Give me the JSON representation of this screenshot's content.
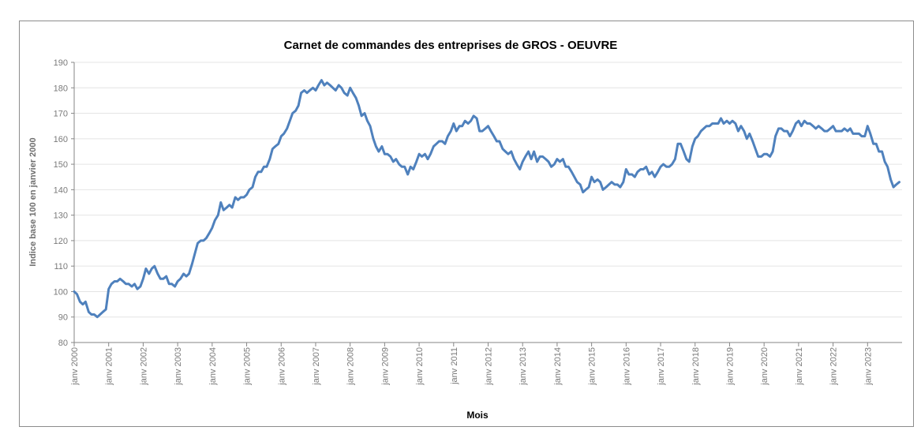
{
  "chart_data": {
    "type": "line",
    "title": "Carnet de commandes des entreprises de GROS - OEUVRE",
    "xlabel": "Mois",
    "ylabel": "Indice base 100 en janvier 2000",
    "ylim": [
      80,
      190
    ],
    "yticks": [
      80,
      90,
      100,
      110,
      120,
      130,
      140,
      150,
      160,
      170,
      180,
      190
    ],
    "xticks": [
      "janv 2000",
      "janv 2001",
      "janv 2002",
      "janv 2003",
      "janv 2004",
      "janv 2005",
      "janv 2006",
      "janv 2007",
      "janv 2008",
      "janv 2009",
      "janv 2010",
      "janv 2011",
      "janv 2012",
      "janv 2013",
      "janv 2014",
      "janv 2015",
      "janv 2016",
      "janv 2017",
      "janv 2018",
      "janv 2019",
      "janv 2020",
      "janv 2021",
      "janv 2022",
      "janv 2023"
    ],
    "grid": true,
    "legend": "none",
    "line_color": "#4f81bd",
    "x_start": "2000-01",
    "x_end": "2023-12",
    "series": [
      {
        "values": [
          [
            2000.0,
            100
          ],
          [
            2000.08,
            99
          ],
          [
            2000.17,
            96
          ],
          [
            2000.25,
            95
          ],
          [
            2000.33,
            96
          ],
          [
            2000.42,
            92
          ],
          [
            2000.5,
            91
          ],
          [
            2000.58,
            91
          ],
          [
            2000.67,
            90
          ],
          [
            2000.75,
            91
          ],
          [
            2000.83,
            92
          ],
          [
            2000.92,
            93
          ],
          [
            2001.0,
            101
          ],
          [
            2001.08,
            103
          ],
          [
            2001.17,
            104
          ],
          [
            2001.25,
            104
          ],
          [
            2001.33,
            105
          ],
          [
            2001.42,
            104
          ],
          [
            2001.5,
            103
          ],
          [
            2001.58,
            103
          ],
          [
            2001.67,
            102
          ],
          [
            2001.75,
            103
          ],
          [
            2001.83,
            101
          ],
          [
            2001.92,
            102
          ],
          [
            2002.0,
            105
          ],
          [
            2002.08,
            109
          ],
          [
            2002.17,
            107
          ],
          [
            2002.25,
            109
          ],
          [
            2002.33,
            110
          ],
          [
            2002.42,
            107
          ],
          [
            2002.5,
            105
          ],
          [
            2002.58,
            105
          ],
          [
            2002.67,
            106
          ],
          [
            2002.75,
            103
          ],
          [
            2002.83,
            103
          ],
          [
            2002.92,
            102
          ],
          [
            2003.0,
            104
          ],
          [
            2003.08,
            105
          ],
          [
            2003.17,
            107
          ],
          [
            2003.25,
            106
          ],
          [
            2003.33,
            107
          ],
          [
            2003.42,
            111
          ],
          [
            2003.5,
            115
          ],
          [
            2003.58,
            119
          ],
          [
            2003.67,
            120
          ],
          [
            2003.75,
            120
          ],
          [
            2003.83,
            121
          ],
          [
            2003.92,
            123
          ],
          [
            2004.0,
            125
          ],
          [
            2004.08,
            128
          ],
          [
            2004.17,
            130
          ],
          [
            2004.25,
            135
          ],
          [
            2004.33,
            132
          ],
          [
            2004.42,
            133
          ],
          [
            2004.5,
            134
          ],
          [
            2004.58,
            133
          ],
          [
            2004.67,
            137
          ],
          [
            2004.75,
            136
          ],
          [
            2004.83,
            137
          ],
          [
            2004.92,
            137
          ],
          [
            2005.0,
            138
          ],
          [
            2005.08,
            140
          ],
          [
            2005.17,
            141
          ],
          [
            2005.25,
            145
          ],
          [
            2005.33,
            147
          ],
          [
            2005.42,
            147
          ],
          [
            2005.5,
            149
          ],
          [
            2005.58,
            149
          ],
          [
            2005.67,
            152
          ],
          [
            2005.75,
            156
          ],
          [
            2005.83,
            157
          ],
          [
            2005.92,
            158
          ],
          [
            2006.0,
            161
          ],
          [
            2006.08,
            162
          ],
          [
            2006.17,
            164
          ],
          [
            2006.25,
            167
          ],
          [
            2006.33,
            170
          ],
          [
            2006.42,
            171
          ],
          [
            2006.5,
            173
          ],
          [
            2006.58,
            178
          ],
          [
            2006.67,
            179
          ],
          [
            2006.75,
            178
          ],
          [
            2006.83,
            179
          ],
          [
            2006.92,
            180
          ],
          [
            2007.0,
            179
          ],
          [
            2007.08,
            181
          ],
          [
            2007.17,
            183
          ],
          [
            2007.25,
            181
          ],
          [
            2007.33,
            182
          ],
          [
            2007.42,
            181
          ],
          [
            2007.5,
            180
          ],
          [
            2007.58,
            179
          ],
          [
            2007.67,
            181
          ],
          [
            2007.75,
            180
          ],
          [
            2007.83,
            178
          ],
          [
            2007.92,
            177
          ],
          [
            2008.0,
            180
          ],
          [
            2008.08,
            178
          ],
          [
            2008.17,
            176
          ],
          [
            2008.25,
            173
          ],
          [
            2008.33,
            169
          ],
          [
            2008.42,
            170
          ],
          [
            2008.5,
            167
          ],
          [
            2008.58,
            165
          ],
          [
            2008.67,
            160
          ],
          [
            2008.75,
            157
          ],
          [
            2008.83,
            155
          ],
          [
            2008.92,
            157
          ],
          [
            2009.0,
            154
          ],
          [
            2009.08,
            154
          ],
          [
            2009.17,
            153
          ],
          [
            2009.25,
            151
          ],
          [
            2009.33,
            152
          ],
          [
            2009.42,
            150
          ],
          [
            2009.5,
            149
          ],
          [
            2009.58,
            149
          ],
          [
            2009.67,
            146
          ],
          [
            2009.75,
            149
          ],
          [
            2009.83,
            148
          ],
          [
            2009.92,
            151
          ],
          [
            2010.0,
            154
          ],
          [
            2010.08,
            153
          ],
          [
            2010.17,
            154
          ],
          [
            2010.25,
            152
          ],
          [
            2010.33,
            154
          ],
          [
            2010.42,
            157
          ],
          [
            2010.5,
            158
          ],
          [
            2010.58,
            159
          ],
          [
            2010.67,
            159
          ],
          [
            2010.75,
            158
          ],
          [
            2010.83,
            161
          ],
          [
            2010.92,
            163
          ],
          [
            2011.0,
            166
          ],
          [
            2011.08,
            163
          ],
          [
            2011.17,
            165
          ],
          [
            2011.25,
            165
          ],
          [
            2011.33,
            167
          ],
          [
            2011.42,
            166
          ],
          [
            2011.5,
            167
          ],
          [
            2011.58,
            169
          ],
          [
            2011.67,
            168
          ],
          [
            2011.75,
            163
          ],
          [
            2011.83,
            163
          ],
          [
            2011.92,
            164
          ],
          [
            2012.0,
            165
          ],
          [
            2012.08,
            163
          ],
          [
            2012.17,
            161
          ],
          [
            2012.25,
            159
          ],
          [
            2012.33,
            159
          ],
          [
            2012.42,
            156
          ],
          [
            2012.5,
            155
          ],
          [
            2012.58,
            154
          ],
          [
            2012.67,
            155
          ],
          [
            2012.75,
            152
          ],
          [
            2012.83,
            150
          ],
          [
            2012.92,
            148
          ],
          [
            2013.0,
            151
          ],
          [
            2013.08,
            153
          ],
          [
            2013.17,
            155
          ],
          [
            2013.25,
            152
          ],
          [
            2013.33,
            155
          ],
          [
            2013.42,
            151
          ],
          [
            2013.5,
            153
          ],
          [
            2013.58,
            153
          ],
          [
            2013.67,
            152
          ],
          [
            2013.75,
            151
          ],
          [
            2013.83,
            149
          ],
          [
            2013.92,
            150
          ],
          [
            2014.0,
            152
          ],
          [
            2014.08,
            151
          ],
          [
            2014.17,
            152
          ],
          [
            2014.25,
            149
          ],
          [
            2014.33,
            149
          ],
          [
            2014.42,
            147
          ],
          [
            2014.5,
            145
          ],
          [
            2014.58,
            143
          ],
          [
            2014.67,
            142
          ],
          [
            2014.75,
            139
          ],
          [
            2014.83,
            140
          ],
          [
            2014.92,
            141
          ],
          [
            2015.0,
            145
          ],
          [
            2015.08,
            143
          ],
          [
            2015.17,
            144
          ],
          [
            2015.25,
            143
          ],
          [
            2015.33,
            140
          ],
          [
            2015.42,
            141
          ],
          [
            2015.5,
            142
          ],
          [
            2015.58,
            143
          ],
          [
            2015.67,
            142
          ],
          [
            2015.75,
            142
          ],
          [
            2015.83,
            141
          ],
          [
            2015.92,
            143
          ],
          [
            2016.0,
            148
          ],
          [
            2016.08,
            146
          ],
          [
            2016.17,
            146
          ],
          [
            2016.25,
            145
          ],
          [
            2016.33,
            147
          ],
          [
            2016.42,
            148
          ],
          [
            2016.5,
            148
          ],
          [
            2016.58,
            149
          ],
          [
            2016.67,
            146
          ],
          [
            2016.75,
            147
          ],
          [
            2016.83,
            145
          ],
          [
            2016.92,
            147
          ],
          [
            2017.0,
            149
          ],
          [
            2017.08,
            150
          ],
          [
            2017.17,
            149
          ],
          [
            2017.25,
            149
          ],
          [
            2017.33,
            150
          ],
          [
            2017.42,
            152
          ],
          [
            2017.5,
            158
          ],
          [
            2017.58,
            158
          ],
          [
            2017.67,
            155
          ],
          [
            2017.75,
            152
          ],
          [
            2017.83,
            151
          ],
          [
            2017.92,
            157
          ],
          [
            2018.0,
            160
          ],
          [
            2018.08,
            161
          ],
          [
            2018.17,
            163
          ],
          [
            2018.25,
            164
          ],
          [
            2018.33,
            165
          ],
          [
            2018.42,
            165
          ],
          [
            2018.5,
            166
          ],
          [
            2018.58,
            166
          ],
          [
            2018.67,
            166
          ],
          [
            2018.75,
            168
          ],
          [
            2018.83,
            166
          ],
          [
            2018.92,
            167
          ],
          [
            2019.0,
            166
          ],
          [
            2019.08,
            167
          ],
          [
            2019.17,
            166
          ],
          [
            2019.25,
            163
          ],
          [
            2019.33,
            165
          ],
          [
            2019.42,
            163
          ],
          [
            2019.5,
            160
          ],
          [
            2019.58,
            162
          ],
          [
            2019.67,
            159
          ],
          [
            2019.75,
            156
          ],
          [
            2019.83,
            153
          ],
          [
            2019.92,
            153
          ],
          [
            2020.0,
            154
          ],
          [
            2020.08,
            154
          ],
          [
            2020.17,
            153
          ],
          [
            2020.25,
            155
          ],
          [
            2020.33,
            161
          ],
          [
            2020.42,
            164
          ],
          [
            2020.5,
            164
          ],
          [
            2020.58,
            163
          ],
          [
            2020.67,
            163
          ],
          [
            2020.75,
            161
          ],
          [
            2020.83,
            163
          ],
          [
            2020.92,
            166
          ],
          [
            2021.0,
            167
          ],
          [
            2021.08,
            165
          ],
          [
            2021.17,
            167
          ],
          [
            2021.25,
            166
          ],
          [
            2021.33,
            166
          ],
          [
            2021.42,
            165
          ],
          [
            2021.5,
            164
          ],
          [
            2021.58,
            165
          ],
          [
            2021.67,
            164
          ],
          [
            2021.75,
            163
          ],
          [
            2021.83,
            163
          ],
          [
            2021.92,
            164
          ],
          [
            2022.0,
            165
          ],
          [
            2022.08,
            163
          ],
          [
            2022.17,
            163
          ],
          [
            2022.25,
            163
          ],
          [
            2022.33,
            164
          ],
          [
            2022.42,
            163
          ],
          [
            2022.5,
            164
          ],
          [
            2022.58,
            162
          ],
          [
            2022.67,
            162
          ],
          [
            2022.75,
            162
          ],
          [
            2022.83,
            161
          ],
          [
            2022.92,
            161
          ],
          [
            2023.0,
            165
          ],
          [
            2023.08,
            162
          ],
          [
            2023.17,
            158
          ],
          [
            2023.25,
            158
          ],
          [
            2023.33,
            155
          ],
          [
            2023.42,
            155
          ],
          [
            2023.5,
            151
          ],
          [
            2023.58,
            149
          ],
          [
            2023.67,
            144
          ],
          [
            2023.75,
            141
          ],
          [
            2023.83,
            142
          ],
          [
            2023.92,
            143
          ]
        ]
      }
    ]
  }
}
